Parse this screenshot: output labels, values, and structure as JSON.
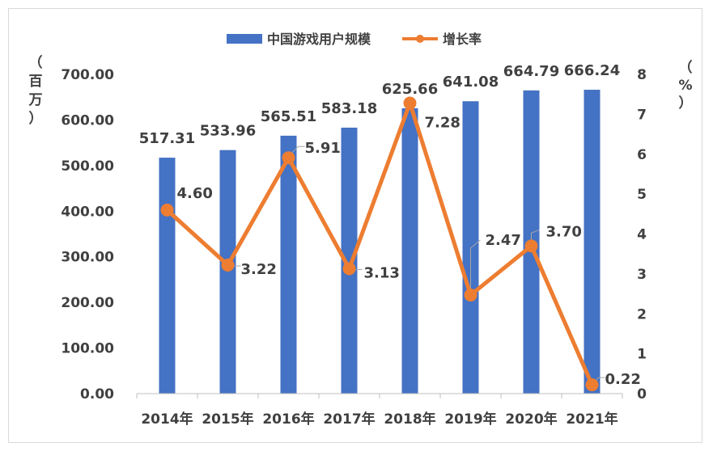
{
  "chart_data": {
    "type": "bar",
    "categories": [
      "2014年",
      "2015年",
      "2016年",
      "2017年",
      "2018年",
      "2019年",
      "2020年",
      "2021年"
    ],
    "series": [
      {
        "name": "中国游戏用户规模",
        "type": "bar",
        "axis": "left",
        "values": [
          517.31,
          533.96,
          565.51,
          583.18,
          625.66,
          641.08,
          664.79,
          666.24
        ],
        "labels": [
          "517.31",
          "533.96",
          "565.51",
          "583.18",
          "625.66",
          "641.08",
          "664.79",
          "666.24"
        ]
      },
      {
        "name": "增长率",
        "type": "line",
        "axis": "right",
        "values": [
          4.6,
          3.22,
          5.91,
          3.13,
          7.28,
          2.47,
          3.7,
          0.22
        ],
        "labels": [
          "4.60",
          "3.22",
          "5.91",
          "3.13",
          "7.28",
          "2.47",
          "3.70",
          "0.22"
        ]
      }
    ],
    "y_left": {
      "label_chars": [
        "（",
        "百",
        "万",
        "）"
      ],
      "ylim": [
        0,
        700
      ],
      "ticks": [
        "0.00",
        "100.00",
        "200.00",
        "300.00",
        "400.00",
        "500.00",
        "600.00",
        "700.00"
      ]
    },
    "y_right": {
      "label_chars": [
        "（",
        "%",
        "）"
      ],
      "ylim": [
        0,
        8
      ],
      "ticks": [
        "0",
        "1",
        "2",
        "3",
        "4",
        "5",
        "6",
        "7",
        "8"
      ]
    },
    "legend_position": "top-center",
    "grid": false,
    "colors": {
      "bar": "#4472C4",
      "line": "#ED7D31",
      "text": "#404040",
      "axis": "#bfbfbf"
    }
  }
}
